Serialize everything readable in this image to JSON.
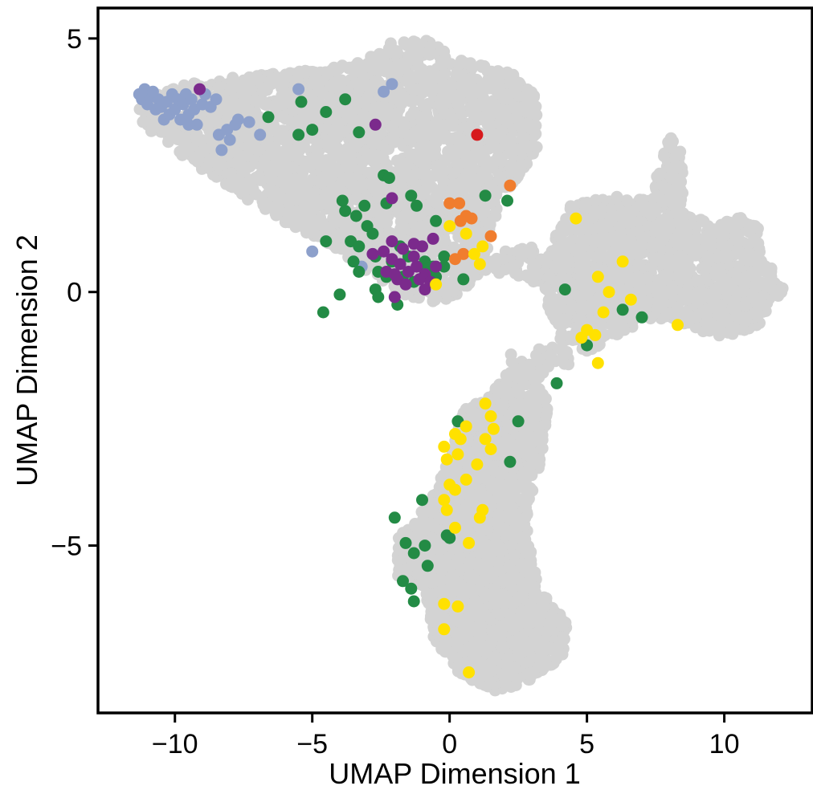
{
  "chart_data": {
    "type": "scatter",
    "title": "",
    "xlabel": "UMAP Dimension 1",
    "ylabel": "UMAP Dimension 2",
    "xlim": [
      -12.8,
      13.2
    ],
    "ylim": [
      -8.3,
      5.6
    ],
    "xticks": [
      -10,
      -5,
      0,
      5,
      10
    ],
    "xtick_labels": [
      "−10",
      "−5",
      "0",
      "5",
      "10"
    ],
    "yticks": [
      -5,
      0,
      5
    ],
    "ytick_labels": [
      "−5",
      "0",
      "5"
    ],
    "grid": false,
    "legend": "none",
    "colors": {
      "background_cells": "#d3d3d3",
      "blue": "#8da0cb",
      "green": "#238b45",
      "purple": "#7b2a8c",
      "orange": "#f07d2e",
      "yellow": "#ffe100",
      "red": "#d7191c"
    },
    "background_regions": [
      {
        "poly": [
          [
            -11.4,
            3.8
          ],
          [
            -10.5,
            4.0
          ],
          [
            -8.5,
            4.2
          ],
          [
            -6.5,
            4.3
          ],
          [
            -4.5,
            4.4
          ],
          [
            -3.0,
            4.6
          ],
          [
            -2.2,
            4.9
          ],
          [
            -1.0,
            5.0
          ],
          [
            0.0,
            4.7
          ],
          [
            1.0,
            4.5
          ],
          [
            2.3,
            4.3
          ],
          [
            3.1,
            3.9
          ],
          [
            3.3,
            3.0
          ],
          [
            2.8,
            2.4
          ],
          [
            1.8,
            1.8
          ],
          [
            1.5,
            1.0
          ],
          [
            1.0,
            0.3
          ],
          [
            0.2,
            -0.1
          ],
          [
            -0.5,
            -0.2
          ],
          [
            -1.5,
            -0.1
          ],
          [
            -2.5,
            0.2
          ],
          [
            -3.5,
            0.6
          ],
          [
            -4.5,
            1.0
          ],
          [
            -5.8,
            1.3
          ],
          [
            -7.0,
            1.7
          ],
          [
            -8.5,
            2.2
          ],
          [
            -10.0,
            2.8
          ],
          [
            -11.2,
            3.3
          ]
        ],
        "count": 2600
      },
      {
        "poly": [
          [
            4.4,
            1.7
          ],
          [
            6.0,
            1.9
          ],
          [
            7.3,
            1.8
          ],
          [
            7.7,
            2.6
          ],
          [
            8.0,
            3.1
          ],
          [
            8.5,
            2.7
          ],
          [
            8.5,
            1.6
          ],
          [
            9.6,
            1.3
          ],
          [
            10.5,
            1.5
          ],
          [
            11.2,
            1.3
          ],
          [
            11.6,
            0.6
          ],
          [
            12.2,
            0.0
          ],
          [
            11.4,
            -0.6
          ],
          [
            10.2,
            -0.9
          ],
          [
            9.3,
            -0.8
          ],
          [
            8.0,
            -0.5
          ],
          [
            7.0,
            -0.6
          ],
          [
            6.0,
            -0.9
          ],
          [
            5.0,
            -1.2
          ],
          [
            4.1,
            -1.0
          ],
          [
            3.6,
            -0.4
          ],
          [
            3.4,
            0.3
          ],
          [
            3.7,
            1.0
          ]
        ],
        "count": 1400
      },
      {
        "poly": [
          [
            1.0,
            0.7
          ],
          [
            3.0,
            0.9
          ],
          [
            3.7,
            0.5
          ],
          [
            3.4,
            0.1
          ],
          [
            2.2,
            0.4
          ],
          [
            1.1,
            0.3
          ]
        ],
        "count": 60
      },
      {
        "poly": [
          [
            2.1,
            -1.2
          ],
          [
            3.5,
            -1.1
          ],
          [
            4.7,
            -1.0
          ],
          [
            4.3,
            -1.5
          ],
          [
            3.3,
            -1.7
          ],
          [
            2.5,
            -1.8
          ]
        ],
        "count": 50
      },
      {
        "poly": [
          [
            -1.9,
            -4.8
          ],
          [
            -0.8,
            -4.2
          ],
          [
            0.0,
            -3.3
          ],
          [
            0.5,
            -2.3
          ],
          [
            1.4,
            -2.1
          ],
          [
            2.1,
            -1.5
          ],
          [
            3.0,
            -1.6
          ],
          [
            3.6,
            -2.2
          ],
          [
            3.3,
            -3.4
          ],
          [
            2.8,
            -4.5
          ],
          [
            3.2,
            -5.8
          ],
          [
            4.3,
            -6.5
          ],
          [
            4.1,
            -7.2
          ],
          [
            2.8,
            -7.7
          ],
          [
            1.6,
            -7.9
          ],
          [
            0.3,
            -7.5
          ],
          [
            -0.6,
            -6.8
          ],
          [
            -0.9,
            -5.8
          ],
          [
            -1.9,
            -5.6
          ]
        ],
        "count": 2200
      }
    ],
    "series": [
      {
        "color": "#8da0cb",
        "points": [
          [
            -11.3,
            3.9
          ],
          [
            -11.2,
            3.8
          ],
          [
            -11.0,
            3.7
          ],
          [
            -10.9,
            3.85
          ],
          [
            -10.7,
            3.6
          ],
          [
            -10.6,
            3.8
          ],
          [
            -10.5,
            3.65
          ],
          [
            -10.4,
            3.4
          ],
          [
            -10.3,
            3.75
          ],
          [
            -10.2,
            3.5
          ],
          [
            -10.1,
            3.9
          ],
          [
            -10.0,
            3.6
          ],
          [
            -9.9,
            3.8
          ],
          [
            -9.8,
            3.4
          ],
          [
            -9.7,
            3.7
          ],
          [
            -9.6,
            3.9
          ],
          [
            -9.5,
            3.5
          ],
          [
            -9.4,
            3.8
          ],
          [
            -9.3,
            3.6
          ],
          [
            -9.2,
            3.3
          ],
          [
            -9.0,
            3.7
          ],
          [
            -8.9,
            3.9
          ],
          [
            -8.7,
            3.65
          ],
          [
            -8.5,
            3.8
          ],
          [
            -9.5,
            3.3
          ],
          [
            -8.4,
            3.1
          ],
          [
            -8.1,
            3.2
          ],
          [
            -7.8,
            3.3
          ],
          [
            -7.7,
            3.4
          ],
          [
            -7.3,
            3.35
          ],
          [
            -6.9,
            3.1
          ],
          [
            -8.0,
            3.0
          ],
          [
            -8.3,
            2.8
          ],
          [
            -5.5,
            4.0
          ],
          [
            -2.4,
            3.95
          ],
          [
            -2.1,
            4.1
          ],
          [
            -5.0,
            0.8
          ],
          [
            -3.2,
            0.5
          ],
          [
            -11.1,
            4.0
          ],
          [
            -10.8,
            3.95
          ]
        ]
      },
      {
        "color": "#238b45",
        "points": [
          [
            -5.4,
            3.75
          ],
          [
            -4.5,
            3.55
          ],
          [
            -3.8,
            3.8
          ],
          [
            -6.6,
            3.45
          ],
          [
            -5.5,
            3.1
          ],
          [
            -5.0,
            3.2
          ],
          [
            -3.3,
            3.15
          ],
          [
            -2.4,
            2.3
          ],
          [
            -2.2,
            2.25
          ],
          [
            -1.4,
            1.9
          ],
          [
            -3.9,
            1.8
          ],
          [
            -3.1,
            1.7
          ],
          [
            -2.3,
            1.75
          ],
          [
            -1.2,
            1.7
          ],
          [
            -3.4,
            1.5
          ],
          [
            -3.8,
            1.6
          ],
          [
            -3.0,
            1.3
          ],
          [
            -2.8,
            1.15
          ],
          [
            -3.6,
            1.0
          ],
          [
            -4.5,
            1.0
          ],
          [
            -3.3,
            0.9
          ],
          [
            -2.7,
            0.7
          ],
          [
            -2.1,
            0.6
          ],
          [
            -1.8,
            0.9
          ],
          [
            -1.5,
            0.7
          ],
          [
            -0.9,
            0.6
          ],
          [
            -0.6,
            0.5
          ],
          [
            -0.2,
            0.7
          ],
          [
            -3.5,
            0.6
          ],
          [
            -2.6,
            0.4
          ],
          [
            -2.3,
            0.3
          ],
          [
            -1.7,
            0.3
          ],
          [
            -1.3,
            0.2
          ],
          [
            -0.5,
            0.3
          ],
          [
            0.5,
            0.25
          ],
          [
            -2.7,
            0.05
          ],
          [
            -4.0,
            -0.05
          ],
          [
            -4.6,
            -0.4
          ],
          [
            -2.6,
            -0.1
          ],
          [
            -1.9,
            -0.25
          ],
          [
            -0.5,
            1.4
          ],
          [
            1.3,
            1.9
          ],
          [
            2.1,
            1.8
          ],
          [
            -0.8,
            0.45
          ],
          [
            -3.3,
            0.4
          ],
          [
            4.2,
            0.05
          ],
          [
            6.3,
            -0.35
          ],
          [
            7.0,
            -0.5
          ],
          [
            5.0,
            -1.05
          ],
          [
            3.9,
            -1.8
          ],
          [
            0.3,
            -2.55
          ],
          [
            2.5,
            -2.55
          ],
          [
            2.2,
            -3.35
          ],
          [
            -1.0,
            -4.1
          ],
          [
            -2.0,
            -4.45
          ],
          [
            -1.6,
            -4.95
          ],
          [
            -1.3,
            -5.15
          ],
          [
            -0.9,
            -5.0
          ],
          [
            -0.8,
            -5.4
          ],
          [
            -0.1,
            -4.8
          ],
          [
            -1.7,
            -5.7
          ],
          [
            -1.4,
            -5.85
          ],
          [
            -1.3,
            -6.1
          ],
          [
            0.0,
            -4.85
          ],
          [
            -0.2,
            0.5
          ]
        ]
      },
      {
        "color": "#7b2a8c",
        "points": [
          [
            -9.1,
            4.0
          ],
          [
            -2.7,
            3.3
          ],
          [
            -2.1,
            1.85
          ],
          [
            -2.1,
            1.0
          ],
          [
            -1.7,
            0.85
          ],
          [
            -1.3,
            0.95
          ],
          [
            -1.0,
            0.9
          ],
          [
            -0.6,
            1.05
          ],
          [
            -2.4,
            0.8
          ],
          [
            -2.1,
            0.65
          ],
          [
            -1.8,
            0.55
          ],
          [
            -1.5,
            0.4
          ],
          [
            -1.2,
            0.5
          ],
          [
            -0.9,
            0.35
          ],
          [
            -0.5,
            0.5
          ],
          [
            -2.3,
            0.4
          ],
          [
            -1.9,
            0.25
          ],
          [
            -1.6,
            0.15
          ],
          [
            -1.1,
            0.25
          ],
          [
            -0.7,
            0.2
          ],
          [
            -2.0,
            0.35
          ],
          [
            -1.3,
            0.7
          ],
          [
            -2.8,
            0.75
          ],
          [
            -2.0,
            -0.1
          ],
          [
            -0.9,
            0.05
          ]
        ]
      },
      {
        "color": "#f07d2e",
        "points": [
          [
            0.0,
            1.75
          ],
          [
            0.35,
            1.75
          ],
          [
            0.6,
            1.5
          ],
          [
            0.4,
            1.4
          ],
          [
            0.8,
            1.45
          ],
          [
            1.5,
            1.1
          ],
          [
            0.5,
            0.75
          ],
          [
            0.2,
            0.65
          ],
          [
            2.2,
            2.1
          ]
        ]
      },
      {
        "color": "#d7191c",
        "points": [
          [
            1.0,
            3.1
          ]
        ]
      },
      {
        "color": "#ffe100",
        "points": [
          [
            0.0,
            1.3
          ],
          [
            0.6,
            1.15
          ],
          [
            1.2,
            0.9
          ],
          [
            0.9,
            0.75
          ],
          [
            1.1,
            0.55
          ],
          [
            -0.5,
            0.15
          ],
          [
            4.6,
            1.45
          ],
          [
            6.3,
            0.6
          ],
          [
            5.4,
            0.3
          ],
          [
            5.8,
            0.0
          ],
          [
            6.6,
            -0.15
          ],
          [
            5.6,
            -0.4
          ],
          [
            5.0,
            -0.75
          ],
          [
            4.8,
            -0.9
          ],
          [
            5.3,
            -0.85
          ],
          [
            8.3,
            -0.65
          ],
          [
            5.4,
            -1.4
          ],
          [
            1.3,
            -2.2
          ],
          [
            1.5,
            -2.45
          ],
          [
            1.6,
            -2.7
          ],
          [
            0.6,
            -2.65
          ],
          [
            0.2,
            -2.8
          ],
          [
            0.4,
            -2.9
          ],
          [
            1.3,
            -2.9
          ],
          [
            1.5,
            -3.1
          ],
          [
            -0.2,
            -3.05
          ],
          [
            0.3,
            -3.2
          ],
          [
            -0.1,
            -3.3
          ],
          [
            1.0,
            -3.4
          ],
          [
            0.0,
            -3.8
          ],
          [
            0.2,
            -3.9
          ],
          [
            0.6,
            -3.7
          ],
          [
            -0.2,
            -4.1
          ],
          [
            -0.1,
            -4.3
          ],
          [
            1.2,
            -4.3
          ],
          [
            1.1,
            -4.45
          ],
          [
            0.2,
            -4.65
          ],
          [
            0.7,
            -4.95
          ],
          [
            -0.2,
            -6.15
          ],
          [
            0.3,
            -6.2
          ],
          [
            -0.2,
            -6.65
          ],
          [
            0.7,
            -7.5
          ]
        ]
      }
    ]
  }
}
